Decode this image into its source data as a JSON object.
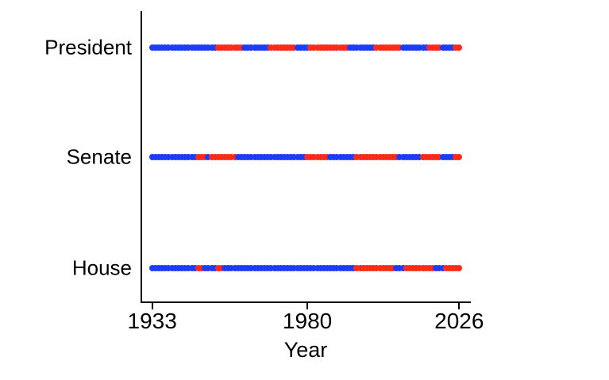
{
  "chart_data": {
    "type": "timeline",
    "title": "",
    "xlabel": "Year",
    "xlim": [
      1933,
      2026
    ],
    "xticks": [
      "1933",
      "1980",
      "2026"
    ],
    "xtick_values": [
      1933,
      1980,
      2026
    ],
    "grid": "off",
    "legend": "none",
    "marker": "circle-dot-per-year",
    "party_colors": {
      "D": "#1c3cfa",
      "R": "#ff2a1c"
    },
    "rows": [
      {
        "label": "President",
        "segments": [
          {
            "party": "D",
            "from": 1933,
            "to": 1952
          },
          {
            "party": "R",
            "from": 1953,
            "to": 1960
          },
          {
            "party": "D",
            "from": 1961,
            "to": 1968
          },
          {
            "party": "R",
            "from": 1969,
            "to": 1976
          },
          {
            "party": "D",
            "from": 1977,
            "to": 1980
          },
          {
            "party": "R",
            "from": 1981,
            "to": 1992
          },
          {
            "party": "D",
            "from": 1993,
            "to": 2000
          },
          {
            "party": "R",
            "from": 2001,
            "to": 2008
          },
          {
            "party": "D",
            "from": 2009,
            "to": 2016
          },
          {
            "party": "R",
            "from": 2017,
            "to": 2020
          },
          {
            "party": "D",
            "from": 2021,
            "to": 2024
          },
          {
            "party": "R",
            "from": 2025,
            "to": 2026
          }
        ]
      },
      {
        "label": "Senate",
        "segments": [
          {
            "party": "D",
            "from": 1933,
            "to": 1946
          },
          {
            "party": "R",
            "from": 1947,
            "to": 1949
          },
          {
            "party": "D",
            "from": 1950,
            "to": 1950
          },
          {
            "party": "R",
            "from": 1951,
            "to": 1958
          },
          {
            "party": "D",
            "from": 1959,
            "to": 1979
          },
          {
            "party": "R",
            "from": 1980,
            "to": 1986
          },
          {
            "party": "D",
            "from": 1987,
            "to": 1994
          },
          {
            "party": "R",
            "from": 1995,
            "to": 2007
          },
          {
            "party": "D",
            "from": 2008,
            "to": 2014
          },
          {
            "party": "R",
            "from": 2015,
            "to": 2020
          },
          {
            "party": "D",
            "from": 2021,
            "to": 2024
          },
          {
            "party": "R",
            "from": 2025,
            "to": 2026
          }
        ]
      },
      {
        "label": "House",
        "segments": [
          {
            "party": "D",
            "from": 1933,
            "to": 1946
          },
          {
            "party": "R",
            "from": 1947,
            "to": 1948
          },
          {
            "party": "D",
            "from": 1949,
            "to": 1952
          },
          {
            "party": "R",
            "from": 1953,
            "to": 1954
          },
          {
            "party": "D",
            "from": 1955,
            "to": 1994
          },
          {
            "party": "R",
            "from": 1995,
            "to": 2006
          },
          {
            "party": "D",
            "from": 2007,
            "to": 2009
          },
          {
            "party": "R",
            "from": 2010,
            "to": 2018
          },
          {
            "party": "D",
            "from": 2019,
            "to": 2021
          },
          {
            "party": "R",
            "from": 2022,
            "to": 2026
          }
        ]
      }
    ]
  }
}
